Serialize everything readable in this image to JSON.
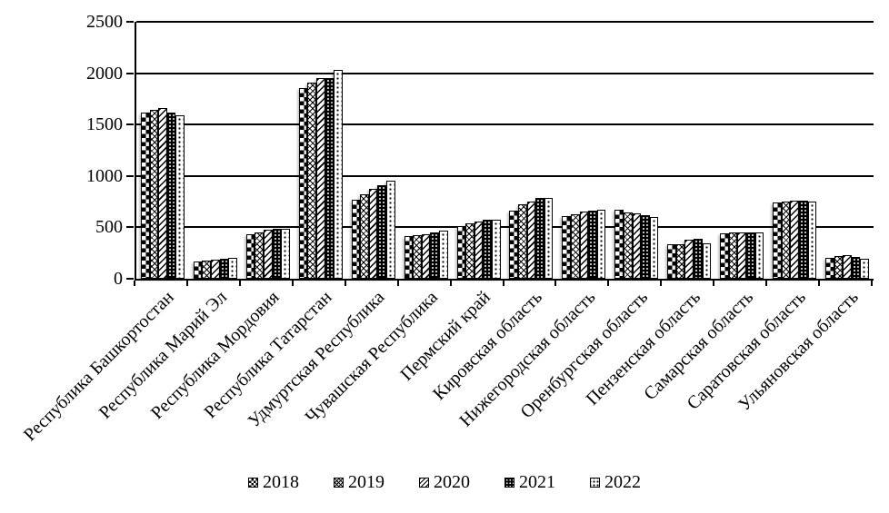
{
  "chart_data": {
    "type": "bar",
    "title": "",
    "xlabel": "",
    "ylabel": "",
    "ylim": [
      0,
      2500
    ],
    "yticks": [
      0,
      500,
      1000,
      1500,
      2000,
      2500
    ],
    "grid": true,
    "legend_position": "bottom",
    "colors": {
      "foreground": "#000000",
      "background": "#ffffff"
    },
    "categories": [
      "Республика Башкортостан",
      "Республика Марий Эл",
      "Республика Мордовия",
      "Республика Татарстан",
      "Удмуртская Республика",
      "Чувашская Республика",
      "Пермский край",
      "Кировская область",
      "Нижегородская область",
      "Оренбургская область",
      "Пензенская область",
      "Самарская область",
      "Саратовская область",
      "Ульяновская область"
    ],
    "series": [
      {
        "name": "2018",
        "pattern": "checker",
        "values": [
          1620,
          170,
          435,
          1855,
          770,
          415,
          510,
          665,
          610,
          670,
          335,
          440,
          740,
          205
        ]
      },
      {
        "name": "2019",
        "pattern": "diamond",
        "values": [
          1645,
          180,
          450,
          1910,
          825,
          425,
          535,
          725,
          625,
          645,
          340,
          450,
          750,
          220
        ]
      },
      {
        "name": "2020",
        "pattern": "diag",
        "values": [
          1665,
          190,
          480,
          1950,
          875,
          435,
          555,
          750,
          650,
          635,
          380,
          455,
          760,
          230
        ]
      },
      {
        "name": "2021",
        "pattern": "darkdots",
        "values": [
          1620,
          195,
          490,
          1950,
          910,
          450,
          570,
          785,
          660,
          620,
          385,
          455,
          760,
          210
        ]
      },
      {
        "name": "2022",
        "pattern": "lightdots",
        "values": [
          1590,
          200,
          490,
          2035,
          955,
          470,
          570,
          790,
          670,
          600,
          345,
          450,
          750,
          195
        ]
      }
    ]
  }
}
